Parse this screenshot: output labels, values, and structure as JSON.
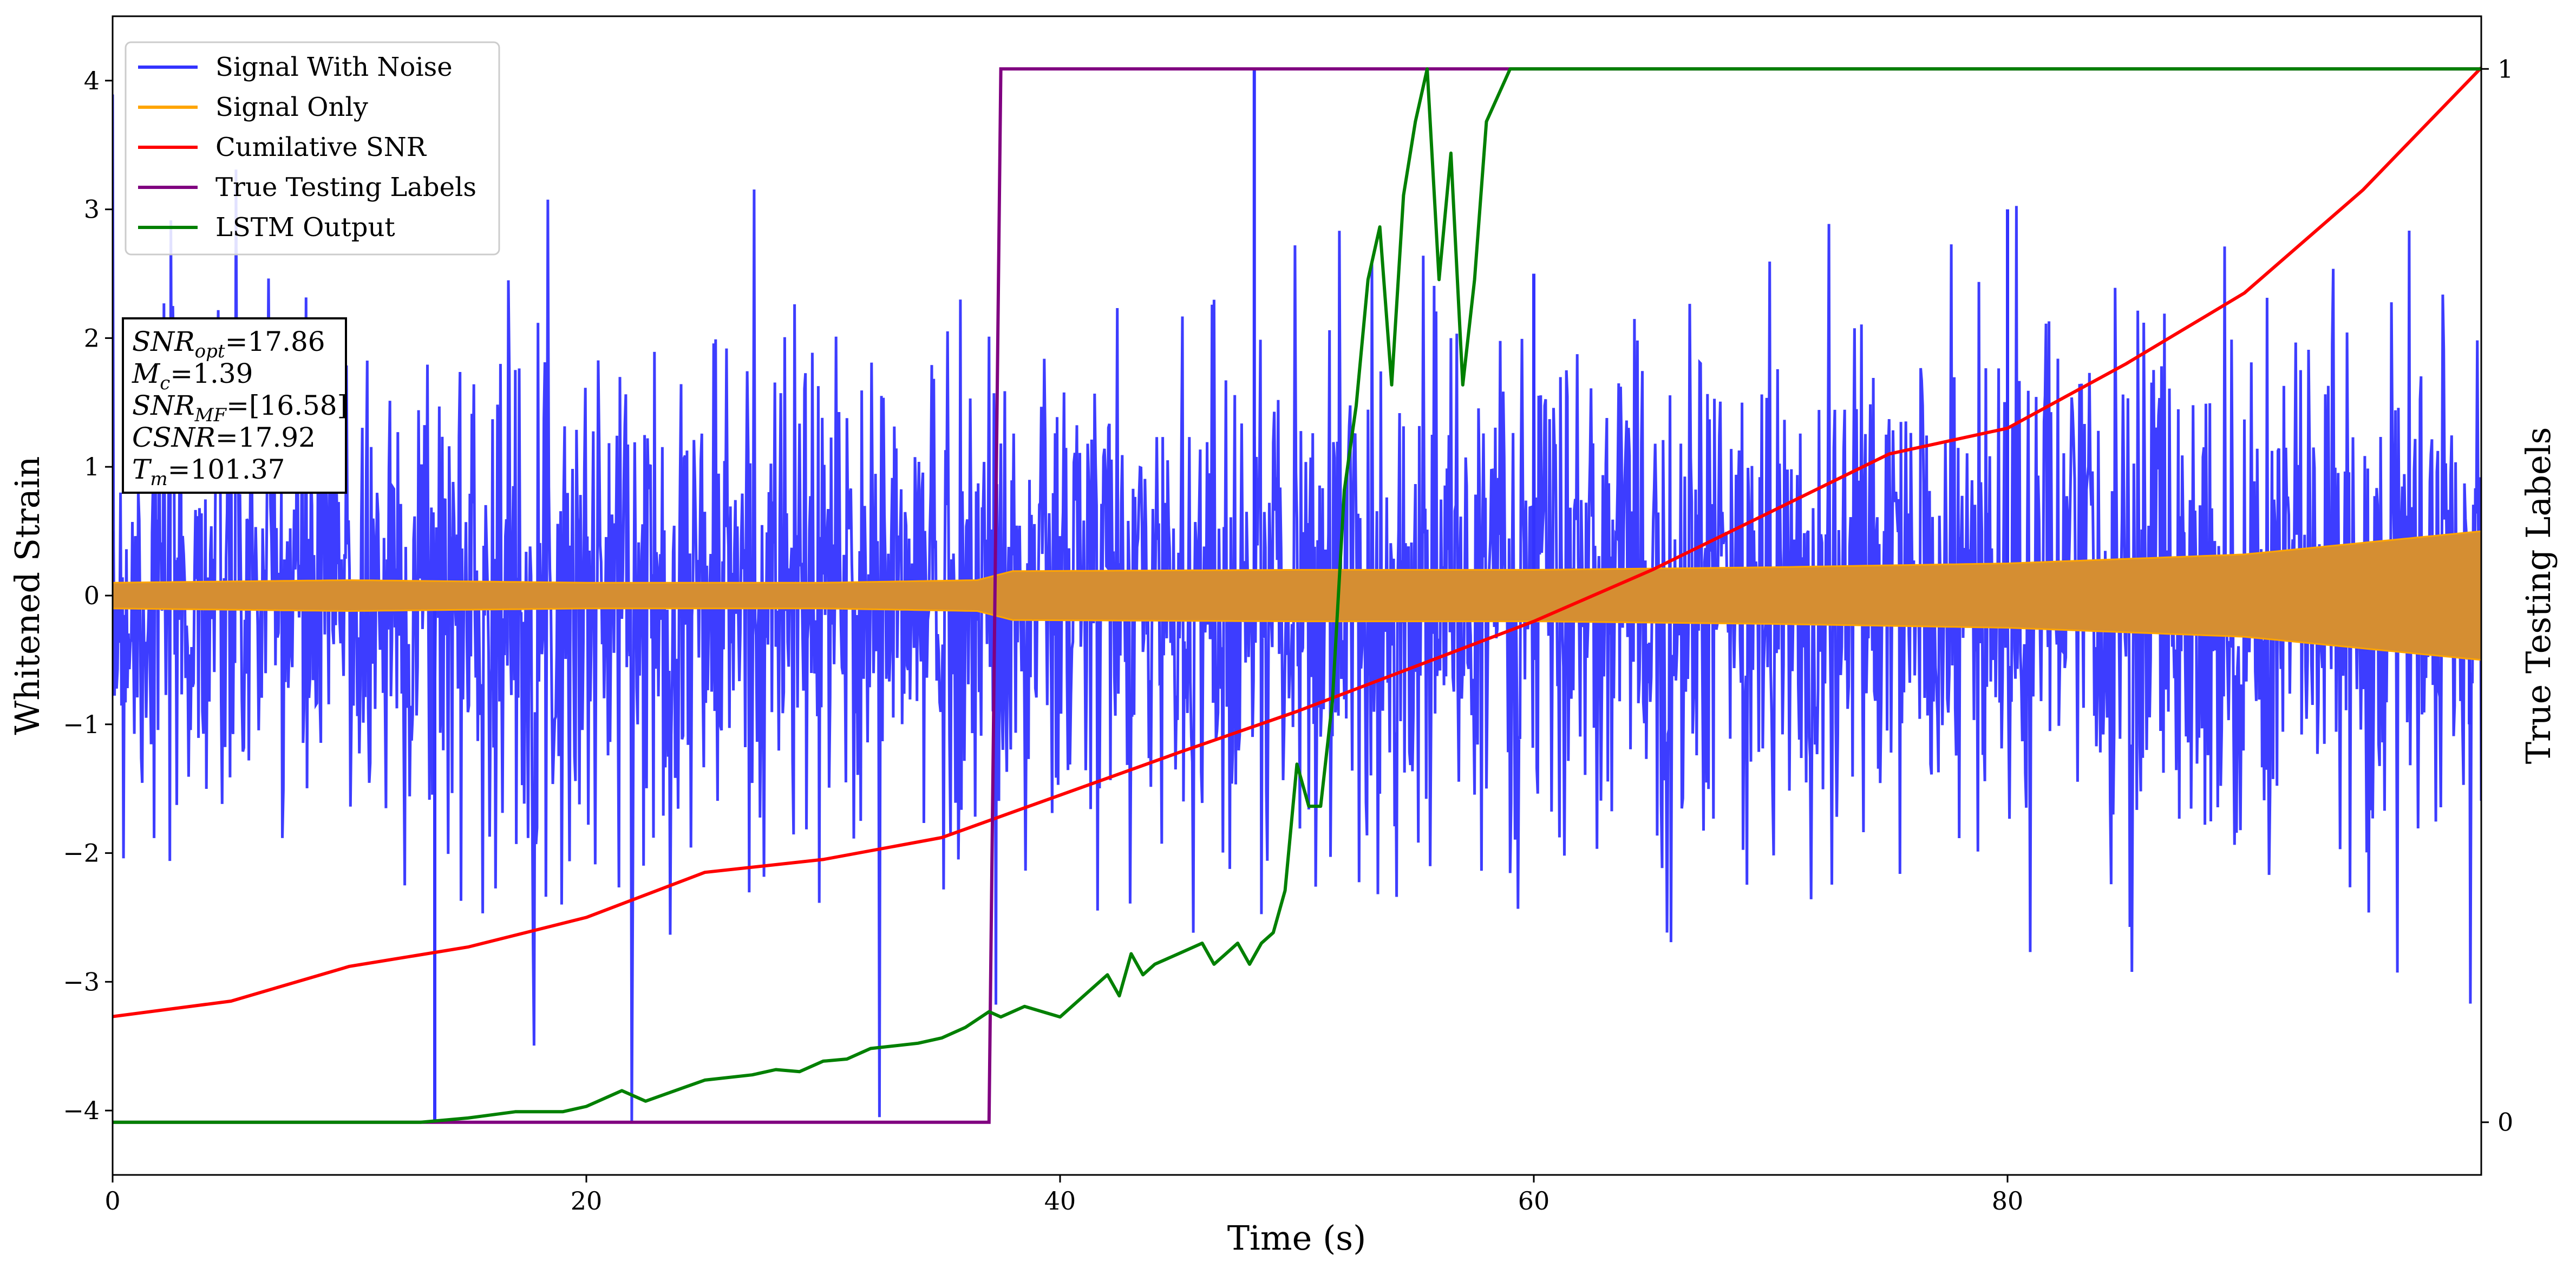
{
  "chart_data": {
    "type": "line",
    "xlabel": "Time (s)",
    "ylabel": "Whitened Strain",
    "y2label": "True Testing Labels",
    "xlim": [
      0,
      100
    ],
    "ylim": [
      -4.5,
      4.5
    ],
    "y2lim": [
      -0.05,
      1.05
    ],
    "xticks": [
      0,
      20,
      40,
      60,
      80
    ],
    "yticks": [
      -4,
      -3,
      -2,
      -1,
      0,
      1,
      2,
      3,
      4
    ],
    "y2ticks": [
      0,
      1
    ],
    "grid": false,
    "legend_position": "top-left",
    "series": [
      {
        "name": "Signal With Noise",
        "color": "#3333ff",
        "kind": "noise",
        "sample_x": [
          0,
          13.6,
          48.2,
          60,
          80,
          99.5
        ],
        "sample_y": [
          0.5,
          -4.08,
          4.1,
          2.5,
          3.0,
          -1.0
        ],
        "typical_range": [
          -2.5,
          2.5
        ],
        "extreme_range": [
          -4.08,
          4.1
        ]
      },
      {
        "name": "Signal Only",
        "color": "#ffa500",
        "kind": "envelope",
        "envelope_x": [
          0,
          10,
          20,
          30,
          36.5,
          38,
          50,
          60,
          70,
          80,
          90,
          100
        ],
        "envelope_upper": [
          0.1,
          0.12,
          0.1,
          0.1,
          0.12,
          0.19,
          0.2,
          0.2,
          0.22,
          0.25,
          0.32,
          0.5
        ],
        "envelope_lower": [
          -0.1,
          -0.12,
          -0.1,
          -0.1,
          -0.12,
          -0.19,
          -0.2,
          -0.2,
          -0.22,
          -0.25,
          -0.32,
          -0.5
        ]
      },
      {
        "name": "Cumilative SNR",
        "color": "#ff0000",
        "axis": "left",
        "x": [
          0,
          5,
          10,
          15,
          20,
          25,
          30,
          35,
          40,
          45,
          50,
          55,
          60,
          65,
          70,
          75,
          80,
          85,
          90,
          95,
          100
        ],
        "y": [
          -3.27,
          -3.15,
          -2.88,
          -2.73,
          -2.5,
          -2.15,
          -2.05,
          -1.88,
          -1.55,
          -1.22,
          -0.9,
          -0.55,
          -0.2,
          0.2,
          0.65,
          1.1,
          1.3,
          1.8,
          2.35,
          3.15,
          4.1
        ]
      },
      {
        "name": "True Testing Labels",
        "color": "#800080",
        "axis": "right",
        "x": [
          0,
          37.0,
          37.5,
          100
        ],
        "y": [
          0,
          0,
          1,
          1
        ]
      },
      {
        "name": "LSTM Output",
        "color": "#008000",
        "axis": "right",
        "x": [
          0,
          13,
          15,
          17,
          19,
          20,
          21.5,
          22.5,
          25,
          27,
          28,
          29,
          30,
          31,
          32,
          34,
          35,
          36,
          37,
          37.5,
          38.5,
          40,
          41,
          42,
          42.5,
          43,
          43.5,
          44,
          45,
          46,
          46.5,
          47,
          47.5,
          48,
          48.5,
          49,
          49.5,
          50,
          50.5,
          51,
          51.5,
          52,
          52.5,
          53,
          53.5,
          54,
          54.5,
          55,
          55.5,
          56,
          56.5,
          57,
          57.5,
          58,
          59,
          60,
          61,
          62,
          63,
          64,
          65,
          66,
          70,
          100
        ],
        "y": [
          0,
          0,
          0.004,
          0.01,
          0.01,
          0.015,
          0.03,
          0.02,
          0.04,
          0.045,
          0.05,
          0.048,
          0.058,
          0.06,
          0.07,
          0.075,
          0.08,
          0.09,
          0.105,
          0.1,
          0.11,
          0.1,
          0.12,
          0.14,
          0.12,
          0.16,
          0.14,
          0.15,
          0.16,
          0.17,
          0.15,
          0.16,
          0.17,
          0.15,
          0.17,
          0.18,
          0.22,
          0.34,
          0.3,
          0.3,
          0.4,
          0.6,
          0.68,
          0.8,
          0.85,
          0.7,
          0.88,
          0.95,
          1.0,
          0.8,
          0.92,
          0.7,
          0.8,
          0.95,
          1.0,
          1.05,
          1.0,
          1.02,
          1.0,
          1.0,
          1.0,
          1.0,
          1.0,
          1.0
        ]
      }
    ],
    "annotation": {
      "lines": [
        {
          "sym": "SNR",
          "sub": "opt",
          "val": "=17.86"
        },
        {
          "sym": "M",
          "sub": "c",
          "val": "=1.39"
        },
        {
          "sym": "SNR",
          "sub": "MF",
          "val": "=[16.58]"
        },
        {
          "sym": "CSNR",
          "sub": "",
          "val": "=17.92"
        },
        {
          "sym": "T",
          "sub": "m",
          "val": "=101.37"
        }
      ]
    }
  }
}
